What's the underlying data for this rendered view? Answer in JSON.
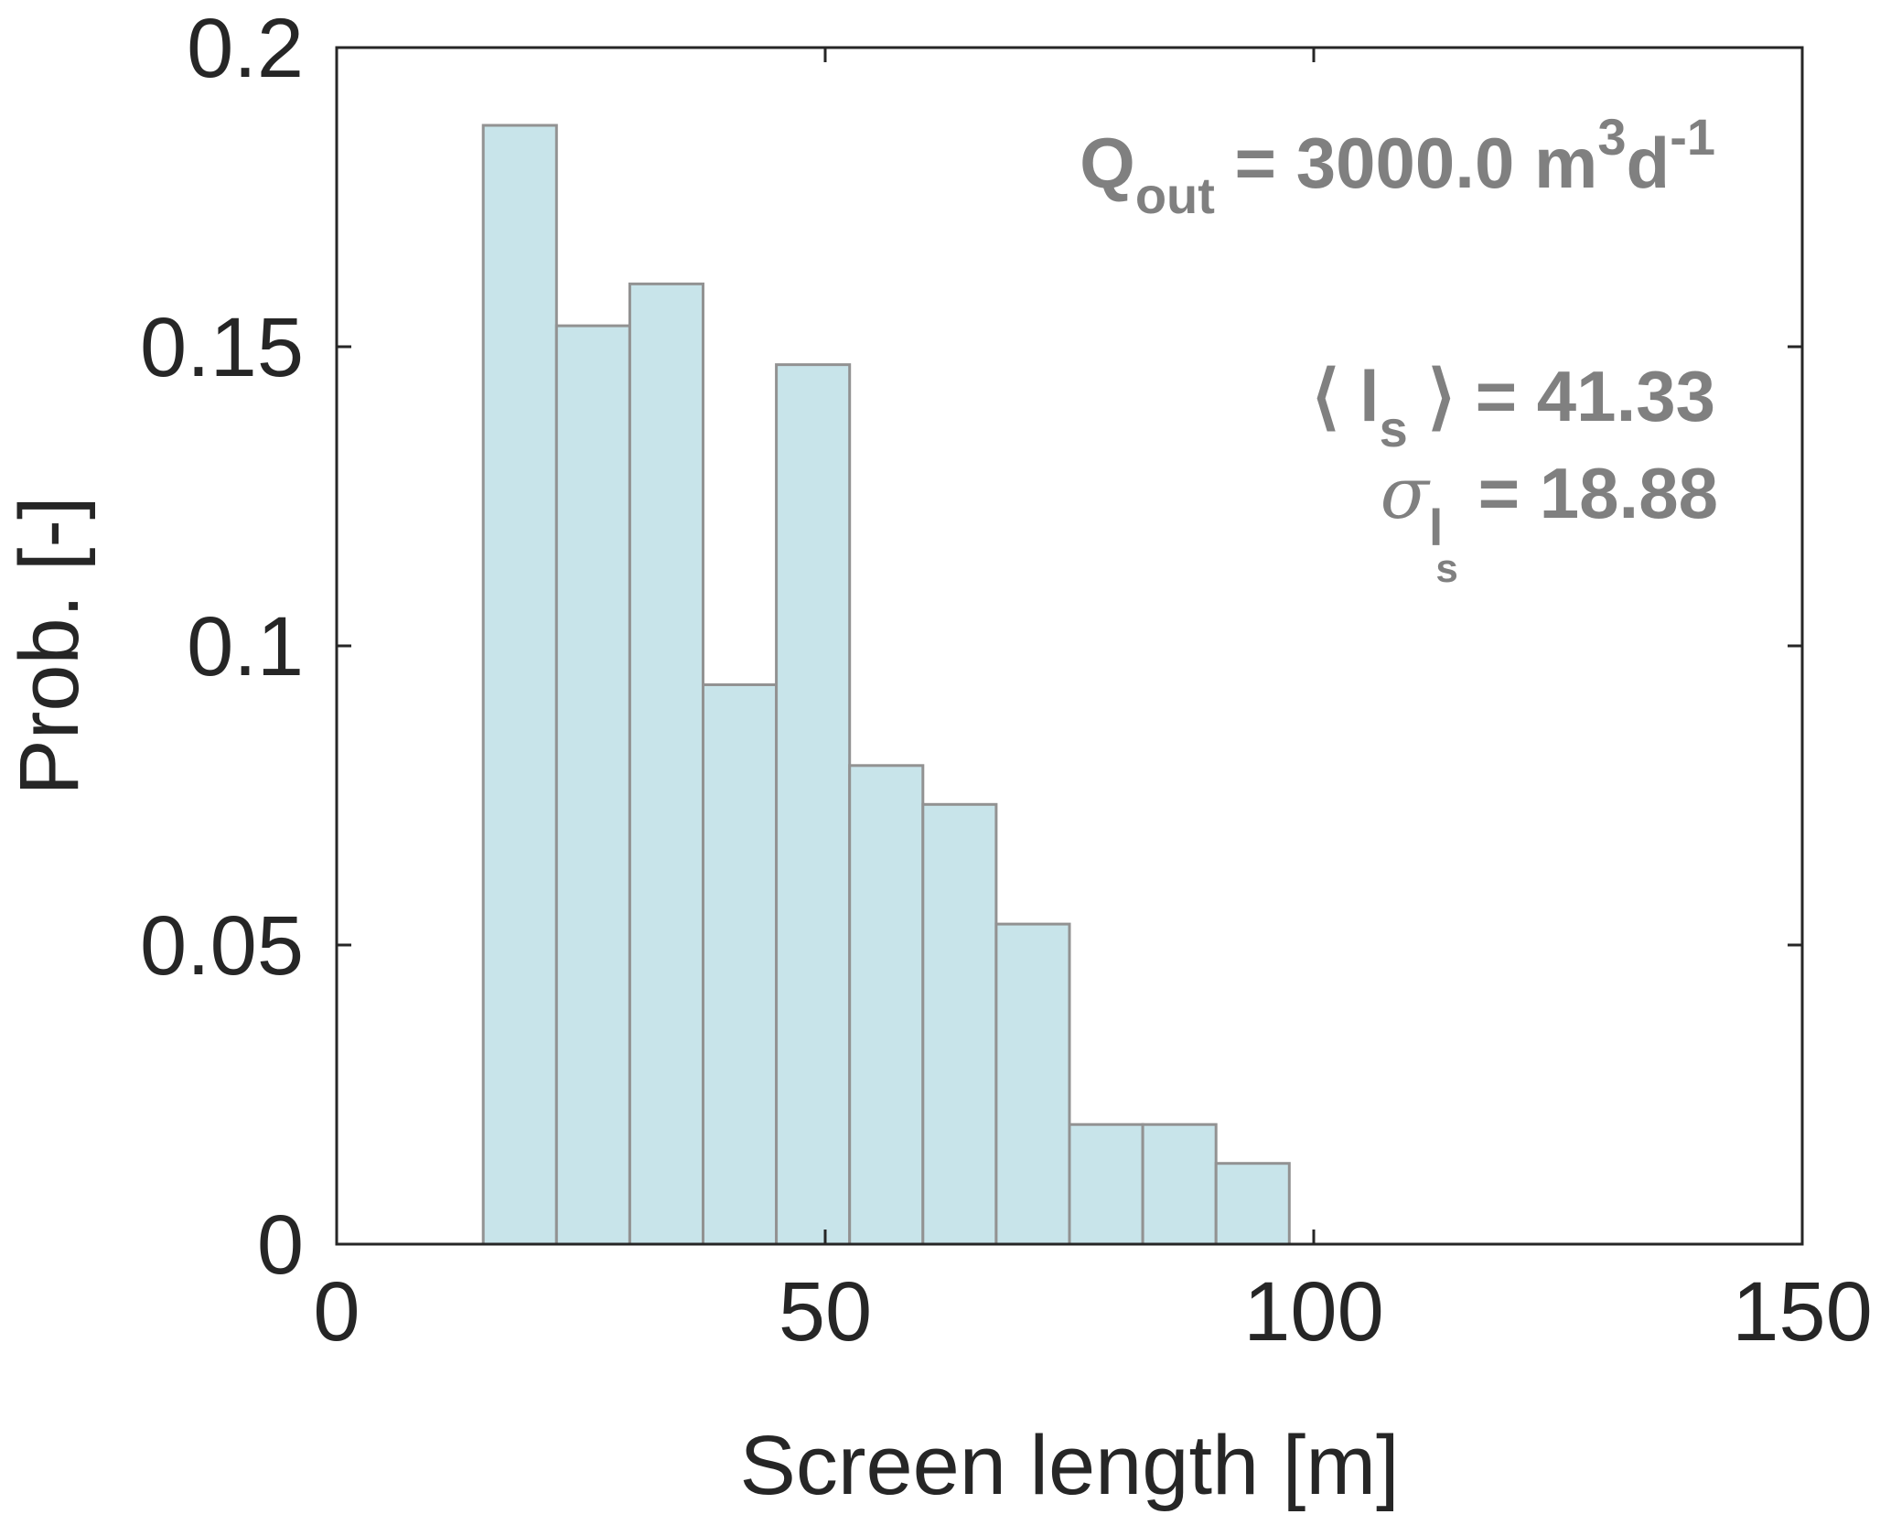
{
  "chart_data": {
    "type": "bar",
    "subtype": "histogram",
    "bin_edges": [
      15,
      22.5,
      30,
      37.5,
      45,
      52.5,
      60,
      67.5,
      75,
      82.5,
      90,
      97.5
    ],
    "values": [
      0.187,
      0.1535,
      0.1605,
      0.0935,
      0.147,
      0.08,
      0.0735,
      0.0535,
      0.02,
      0.02,
      0.0135
    ],
    "xlabel": "Screen length [m]",
    "ylabel": "Prob. [-]",
    "xlim": [
      0,
      150
    ],
    "ylim": [
      0,
      0.2
    ],
    "xticks": [
      0,
      50,
      100,
      150
    ],
    "xtick_labels": [
      "0",
      "50",
      "100",
      "150"
    ],
    "yticks": [
      0,
      0.05,
      0.1,
      0.15,
      0.2
    ],
    "ytick_labels": [
      "0",
      "0.05",
      "0.1",
      "0.15",
      "0.2"
    ],
    "grid": false,
    "bar_fill": "#c8e4ea",
    "bar_edge": "#929292",
    "annotations": {
      "q_prefix": "Q",
      "q_sub": "out",
      "q_mid": " = 3000.0 m",
      "q_sup1": "3",
      "q_mid2": "d",
      "q_sup2": "-1",
      "mean_open": "⟨ l",
      "mean_sub": "s",
      "mean_close": " ⟩ = 41.33",
      "std_symbol": "σ",
      "std_sub_l": "l",
      "std_sub_s": "s",
      "std_value": " = 18.88"
    }
  }
}
